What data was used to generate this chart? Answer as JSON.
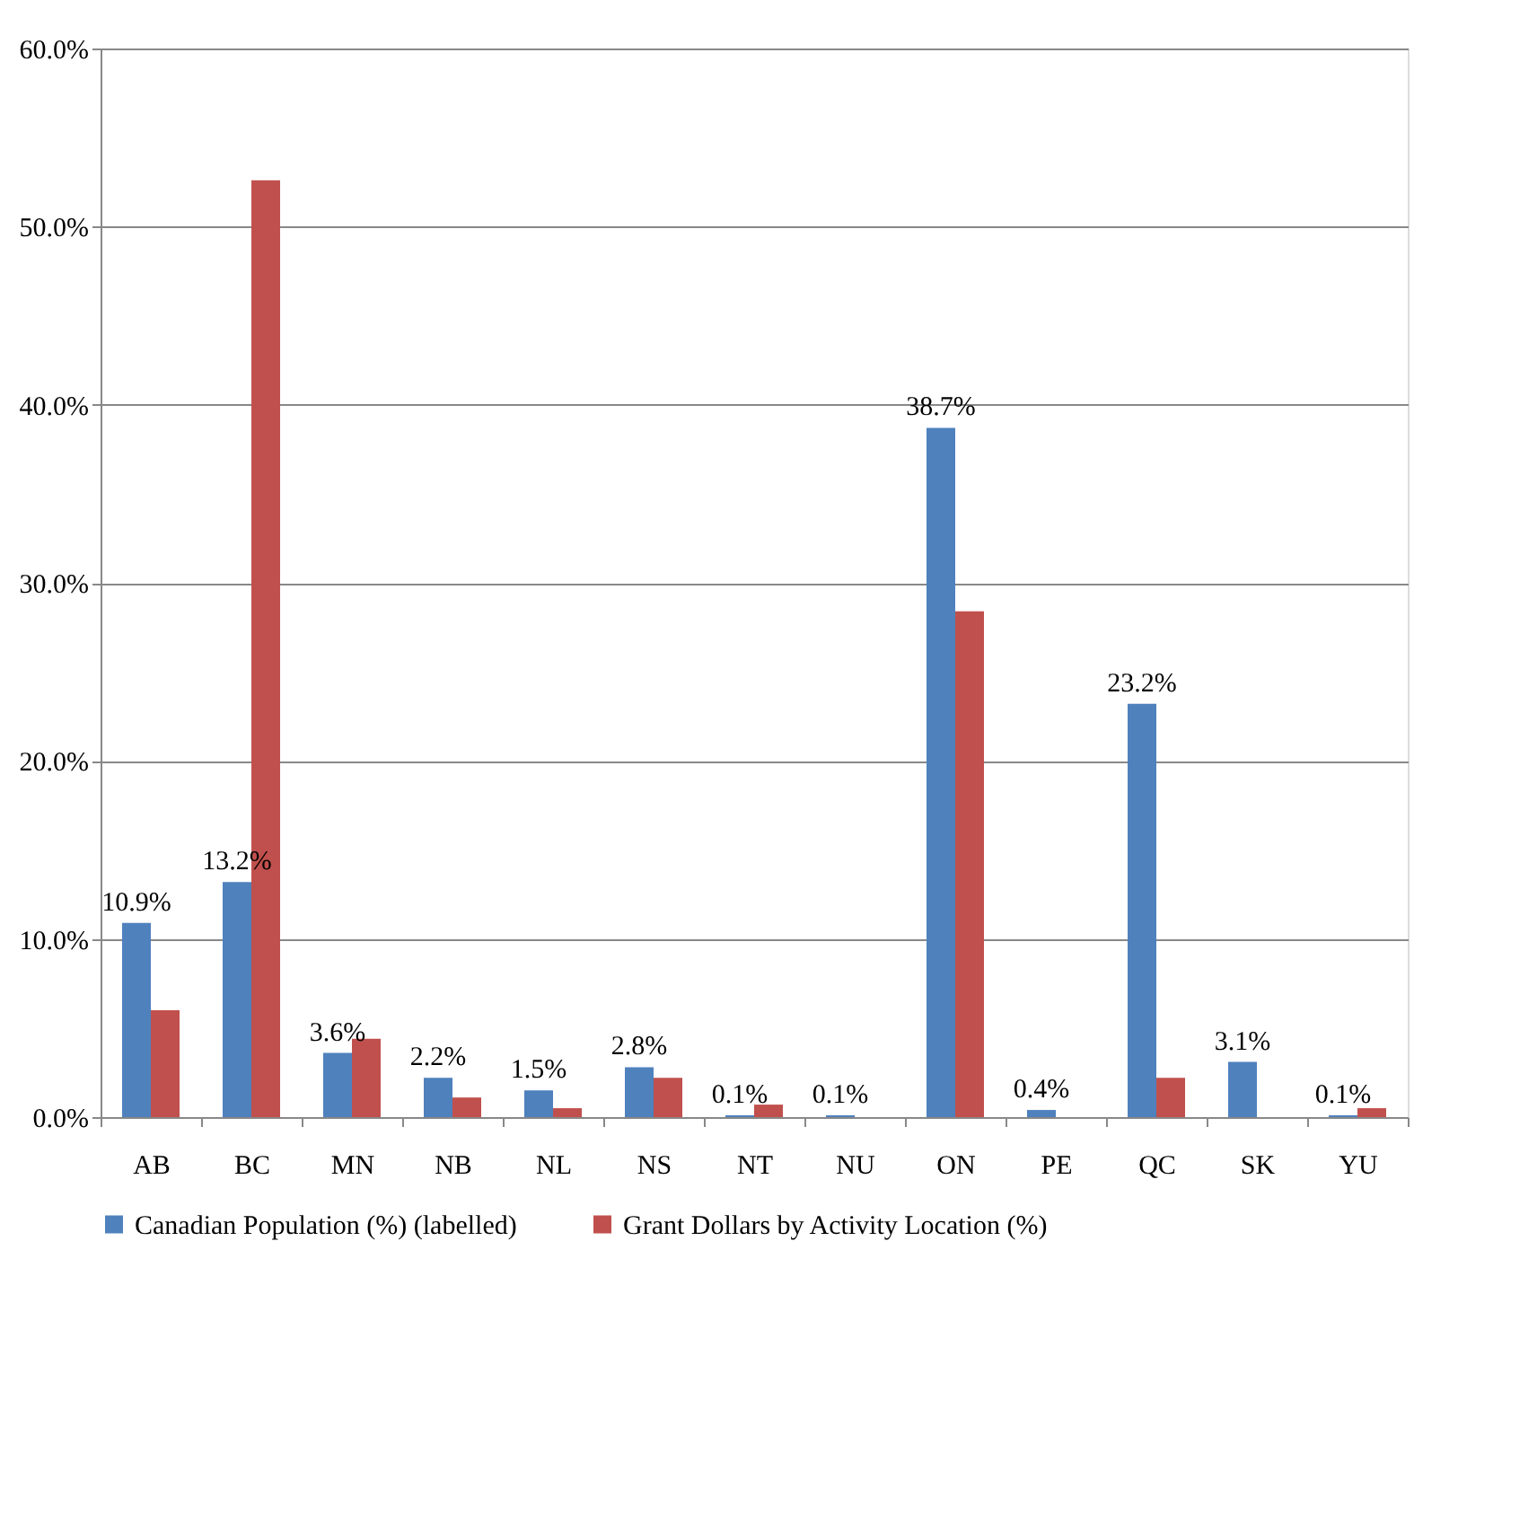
{
  "chart_data": {
    "type": "bar",
    "categories": [
      "AB",
      "BC",
      "MN",
      "NB",
      "NL",
      "NS",
      "NT",
      "NU",
      "ON",
      "PE",
      "QC",
      "SK",
      "YU"
    ],
    "series": [
      {
        "name": "Canadian Population (%) (labelled)",
        "color": "#4f81bd",
        "values": [
          10.9,
          13.2,
          3.6,
          2.2,
          1.5,
          2.8,
          0.1,
          0.1,
          38.7,
          0.4,
          23.2,
          3.1,
          0.1
        ],
        "value_labels": [
          "10.9%",
          "13.2%",
          "3.6%",
          "2.2%",
          "1.5%",
          "2.8%",
          "0.1%",
          "0.1%",
          "38.7%",
          "0.4%",
          "23.2%",
          "3.1%",
          "0.1%"
        ]
      },
      {
        "name": "Grant Dollars by Activity Location (%)",
        "color": "#c0504d",
        "values": [
          6.0,
          52.6,
          4.4,
          1.1,
          0.5,
          2.2,
          0.7,
          0,
          28.4,
          0,
          2.2,
          0,
          0.5
        ]
      }
    ],
    "ylim": [
      0,
      60
    ],
    "yticks": [
      {
        "value": 0,
        "label": "0.0%"
      },
      {
        "value": 10,
        "label": "10.0%"
      },
      {
        "value": 20,
        "label": "20.0%"
      },
      {
        "value": 30,
        "label": "30.0%"
      },
      {
        "value": 40,
        "label": "40.0%"
      },
      {
        "value": 50,
        "label": "50.0%"
      },
      {
        "value": 60,
        "label": "60.0%"
      }
    ],
    "grid": "y",
    "legend": "bottom"
  }
}
